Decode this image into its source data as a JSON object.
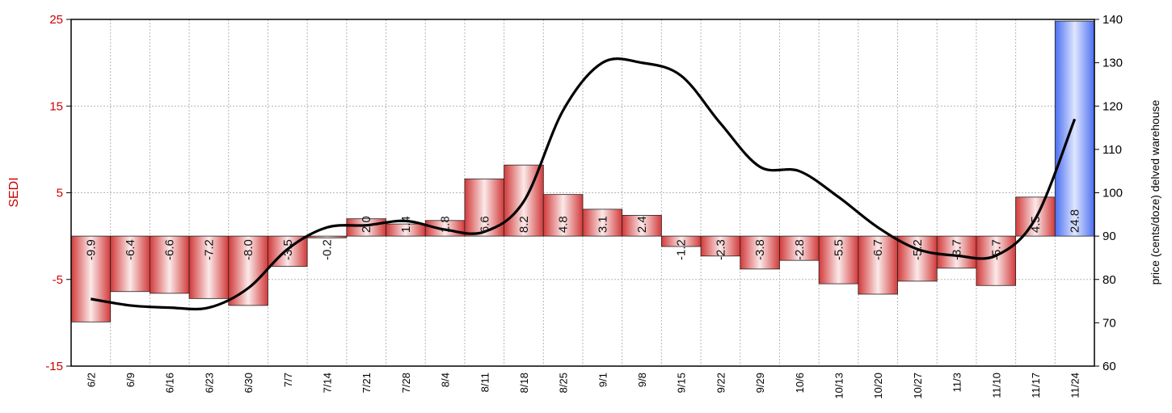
{
  "chart_data": {
    "type": "bar",
    "title": "",
    "ylabel": "SEDI",
    "y2label": "price (cents/doze) delved warehouse",
    "ylim": [
      -15,
      25
    ],
    "y_ticks": [
      25,
      15,
      5,
      -5,
      -15
    ],
    "y2lim": [
      60,
      140
    ],
    "y2_ticks": [
      140,
      130,
      120,
      110,
      100,
      90,
      80,
      70,
      60
    ],
    "grid": true,
    "categories": [
      "6/2",
      "6/9",
      "6/16",
      "6/23",
      "6/30",
      "7/7",
      "7/14",
      "7/21",
      "7/28",
      "8/4",
      "8/11",
      "8/18",
      "8/25",
      "9/1",
      "9/8",
      "9/15",
      "9/22",
      "9/29",
      "10/6",
      "10/13",
      "10/20",
      "10/27",
      "11/3",
      "11/10",
      "11/17",
      "11/24"
    ],
    "series": [
      {
        "type": "bar",
        "values": [
          -9.9,
          -6.4,
          -6.6,
          -7.2,
          -8.0,
          -3.5,
          -0.2,
          2.0,
          1.4,
          1.8,
          6.6,
          8.2,
          4.8,
          3.1,
          2.4,
          -1.2,
          -2.3,
          -3.8,
          -2.8,
          -5.5,
          -6.7,
          -5.2,
          -3.7,
          -5.7,
          4.5,
          24.8
        ],
        "labels": [
          "-9.9",
          "-6.4",
          "-6.6",
          "-7.2",
          "-8.0",
          "-3.5",
          "-0.2",
          "2.0",
          "1.4",
          "1.8",
          "6.6",
          "8.2",
          "4.8",
          "3.1",
          "2.4",
          "-1.2",
          "-2.3",
          "-3.8",
          "-2.8",
          "-5.5",
          "-6.7",
          "-5.2",
          "-3.7",
          "-5.7",
          "4.5",
          "24.8"
        ],
        "color": "#d23a3a",
        "highlight_color": "#4a6ff0",
        "highlight_index": 25
      },
      {
        "type": "line",
        "axis": "right",
        "values": [
          75.5,
          74,
          73.5,
          73.5,
          78,
          87,
          92,
          92.5,
          93.5,
          91.5,
          91,
          98,
          119,
          130,
          130,
          127,
          116,
          106,
          105,
          99,
          92,
          87,
          85.5,
          85.5,
          94,
          117
        ],
        "color": "#000000"
      }
    ]
  }
}
